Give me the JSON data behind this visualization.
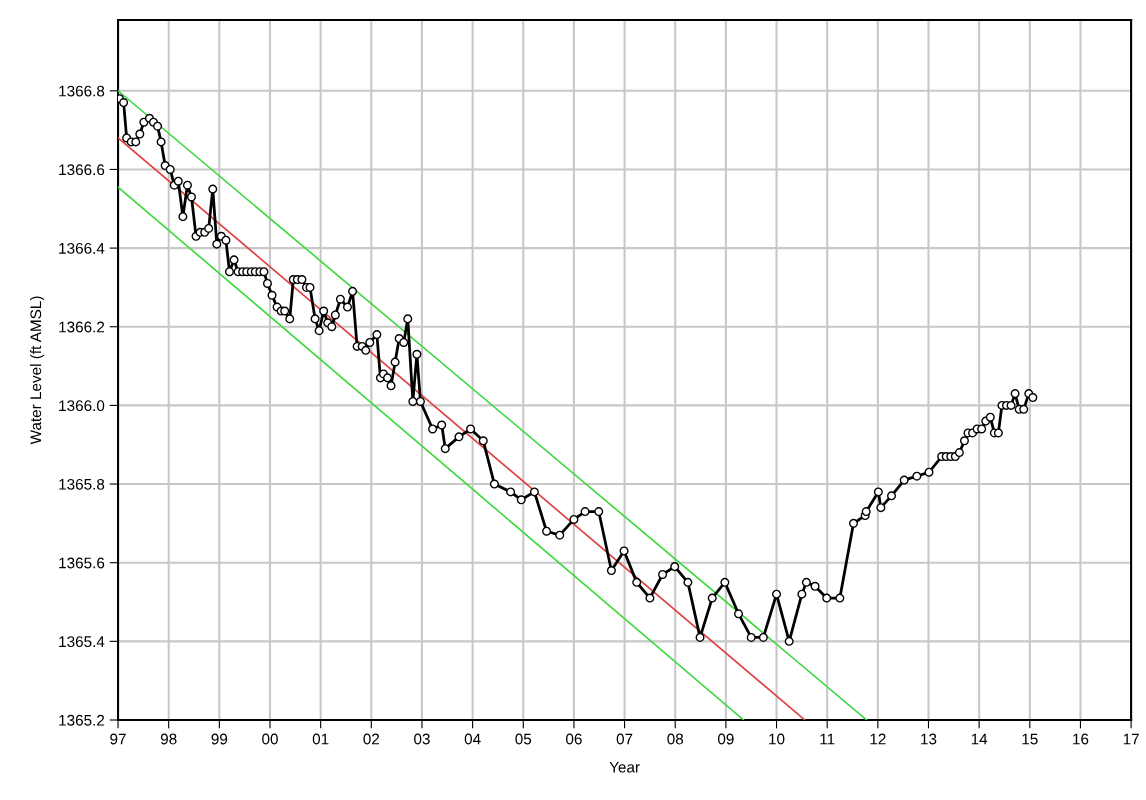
{
  "chart_data": {
    "type": "line",
    "xlabel": "Year",
    "ylabel": "Water Level (ft AMSL)",
    "xlim": [
      1997,
      2017
    ],
    "ylim": [
      1365.2,
      1366.98
    ],
    "xticks": [
      {
        "value": 1997,
        "label": "97"
      },
      {
        "value": 1998,
        "label": "98"
      },
      {
        "value": 1999,
        "label": "99"
      },
      {
        "value": 2000,
        "label": "00"
      },
      {
        "value": 2001,
        "label": "01"
      },
      {
        "value": 2002,
        "label": "02"
      },
      {
        "value": 2003,
        "label": "03"
      },
      {
        "value": 2004,
        "label": "04"
      },
      {
        "value": 2005,
        "label": "05"
      },
      {
        "value": 2006,
        "label": "06"
      },
      {
        "value": 2007,
        "label": "07"
      },
      {
        "value": 2008,
        "label": "08"
      },
      {
        "value": 2009,
        "label": "09"
      },
      {
        "value": 2010,
        "label": "10"
      },
      {
        "value": 2011,
        "label": "11"
      },
      {
        "value": 2012,
        "label": "12"
      },
      {
        "value": 2013,
        "label": "13"
      },
      {
        "value": 2014,
        "label": "14"
      },
      {
        "value": 2015,
        "label": "15"
      },
      {
        "value": 2016,
        "label": "16"
      },
      {
        "value": 2017,
        "label": "17"
      }
    ],
    "yticks": [
      {
        "value": 1365.2,
        "label": "1365.2"
      },
      {
        "value": 1365.4,
        "label": "1365.4"
      },
      {
        "value": 1365.6,
        "label": "1365.6"
      },
      {
        "value": 1365.8,
        "label": "1365.8"
      },
      {
        "value": 1366.0,
        "label": "1366.0"
      },
      {
        "value": 1366.2,
        "label": "1366.2"
      },
      {
        "value": 1366.4,
        "label": "1366.4"
      },
      {
        "value": 1366.6,
        "label": "1366.6"
      },
      {
        "value": 1366.8,
        "label": "1366.8"
      }
    ],
    "grid": true,
    "line_style": "solid",
    "series": [
      {
        "color": "#000000",
        "marker": "circle",
        "x": [
          1997.03,
          1997.11,
          1997.17,
          1997.26,
          1997.35,
          1997.43,
          1997.51,
          1997.62,
          1997.7,
          1997.78,
          1997.85,
          1997.93,
          1998.03,
          1998.11,
          1998.19,
          1998.28,
          1998.37,
          1998.45,
          1998.54,
          1998.62,
          1998.71,
          1998.79,
          1998.87,
          1998.95,
          1999.04,
          1999.13,
          1999.2,
          1999.29,
          1999.37,
          1999.46,
          1999.54,
          1999.63,
          1999.71,
          1999.8,
          1999.88,
          1999.95,
          2000.04,
          2000.14,
          2000.22,
          2000.29,
          2000.39,
          2000.46,
          2000.54,
          2000.63,
          2000.72,
          2000.79,
          2000.89,
          2000.97,
          2001.06,
          2001.14,
          2001.22,
          2001.29,
          2001.39,
          2001.53,
          2001.63,
          2001.72,
          2001.82,
          2001.89,
          2001.97,
          2002.11,
          2002.18,
          2002.24,
          2002.32,
          2002.39,
          2002.47,
          2002.55,
          2002.64,
          2002.72,
          2002.82,
          2002.9,
          2002.97,
          2003.21,
          2003.39,
          2003.46,
          2003.73,
          2003.96,
          2004.21,
          2004.43,
          2004.75,
          2004.96,
          2005.22,
          2005.46,
          2005.72,
          2006.0,
          2006.22,
          2006.49,
          2006.74,
          2006.99,
          2007.24,
          2007.5,
          2007.75,
          2007.99,
          2008.25,
          2008.49,
          2008.73,
          2008.98,
          2009.25,
          2009.5,
          2009.74,
          2010.0,
          2010.25,
          2010.5,
          2010.59,
          2010.76,
          2010.99,
          2011.25,
          2011.52,
          2011.75,
          2011.77,
          2012.01,
          2012.06,
          2012.27,
          2012.52,
          2012.77,
          2013.01,
          2013.26,
          2013.35,
          2013.44,
          2013.53,
          2013.61,
          2013.71,
          2013.78,
          2013.87,
          2013.96,
          2014.05,
          2014.13,
          2014.22,
          2014.3,
          2014.38,
          2014.45,
          2014.54,
          2014.63,
          2014.71,
          2014.79,
          2014.88,
          2014.98,
          2015.06
        ],
        "values": [
          1366.78,
          1366.77,
          1366.68,
          1366.67,
          1366.67,
          1366.69,
          1366.72,
          1366.73,
          1366.72,
          1366.71,
          1366.67,
          1366.61,
          1366.6,
          1366.56,
          1366.57,
          1366.48,
          1366.56,
          1366.53,
          1366.43,
          1366.44,
          1366.44,
          1366.45,
          1366.55,
          1366.41,
          1366.43,
          1366.42,
          1366.34,
          1366.37,
          1366.34,
          1366.34,
          1366.34,
          1366.34,
          1366.34,
          1366.34,
          1366.34,
          1366.31,
          1366.28,
          1366.25,
          1366.24,
          1366.24,
          1366.22,
          1366.32,
          1366.32,
          1366.32,
          1366.3,
          1366.3,
          1366.22,
          1366.19,
          1366.24,
          1366.21,
          1366.2,
          1366.23,
          1366.27,
          1366.25,
          1366.29,
          1366.15,
          1366.15,
          1366.14,
          1366.16,
          1366.18,
          1366.07,
          1366.08,
          1366.07,
          1366.05,
          1366.11,
          1366.17,
          1366.16,
          1366.22,
          1366.01,
          1366.13,
          1366.01,
          1365.94,
          1365.95,
          1365.89,
          1365.92,
          1365.94,
          1365.91,
          1365.8,
          1365.78,
          1365.76,
          1365.78,
          1365.68,
          1365.67,
          1365.71,
          1365.73,
          1365.73,
          1365.58,
          1365.63,
          1365.55,
          1365.51,
          1365.57,
          1365.59,
          1365.55,
          1365.41,
          1365.51,
          1365.55,
          1365.47,
          1365.41,
          1365.41,
          1365.52,
          1365.4,
          1365.52,
          1365.55,
          1365.54,
          1365.51,
          1365.51,
          1365.7,
          1365.72,
          1365.73,
          1365.78,
          1365.74,
          1365.77,
          1365.81,
          1365.82,
          1365.83,
          1365.87,
          1365.87,
          1365.87,
          1365.87,
          1365.88,
          1365.91,
          1365.93,
          1365.93,
          1365.94,
          1365.94,
          1365.96,
          1365.97,
          1365.93,
          1365.93,
          1366.0,
          1366.0,
          1366.0,
          1366.03,
          1365.99,
          1365.99,
          1366.03,
          1366.02
        ]
      },
      {
        "color": "#e04040",
        "marker": "none",
        "x": [
          1997,
          2010.56
        ],
        "values": [
          1366.68,
          1365.2
        ]
      },
      {
        "color": "#40d840",
        "marker": "none",
        "x": [
          1997,
          2011.78
        ],
        "values": [
          1366.8,
          1365.2
        ]
      },
      {
        "color": "#40d840",
        "marker": "none",
        "x": [
          1997,
          2009.35
        ],
        "values": [
          1366.555,
          1365.2
        ]
      }
    ]
  }
}
